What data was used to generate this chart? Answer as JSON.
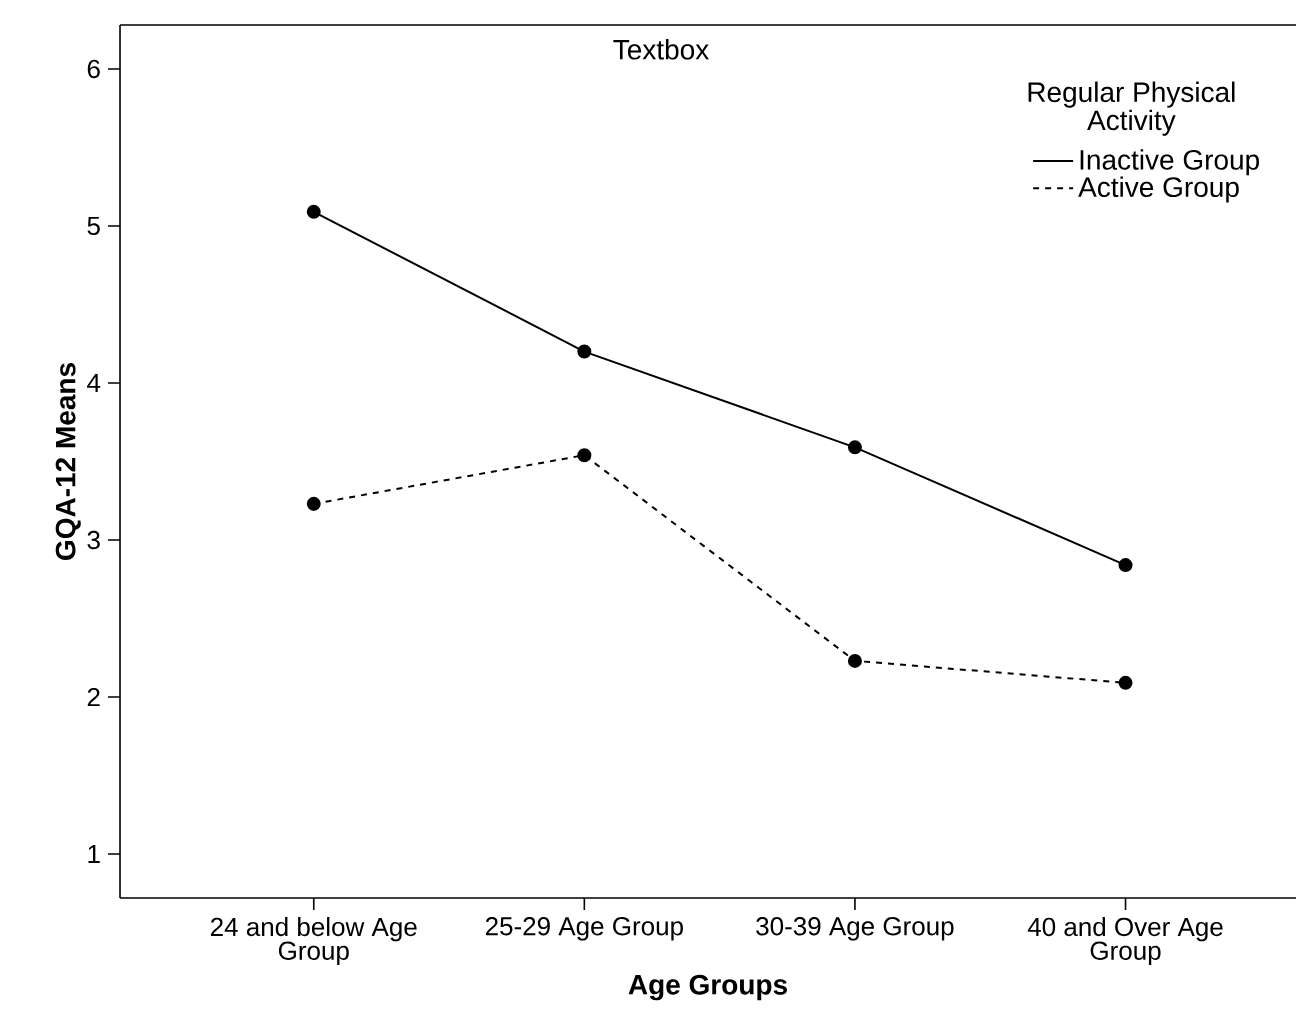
{
  "chart_data": {
    "type": "line",
    "xlabel": "Age Groups",
    "ylabel": "GQA-12 Means",
    "legend_title": "Regular Physical Activity",
    "annotations": [
      "Textbox"
    ],
    "categories": [
      "24 and below Age Group",
      "25-29 Age Group",
      "30-39 Age Group",
      "40 and Over Age Group"
    ],
    "series": [
      {
        "name": "Inactive Group",
        "color": "#000000",
        "line_style": "solid",
        "values": [
          5.09,
          4.2,
          3.59,
          2.84
        ]
      },
      {
        "name": "Active Group",
        "color": "#000000",
        "line_style": "dashed",
        "values": [
          3.23,
          3.54,
          2.23,
          2.09
        ]
      }
    ],
    "ylim": [
      0.72,
      6.28
    ],
    "yticks": [
      1,
      2,
      3,
      4,
      5,
      6
    ],
    "grid": false,
    "legend": "top right",
    "marker": "circle"
  }
}
